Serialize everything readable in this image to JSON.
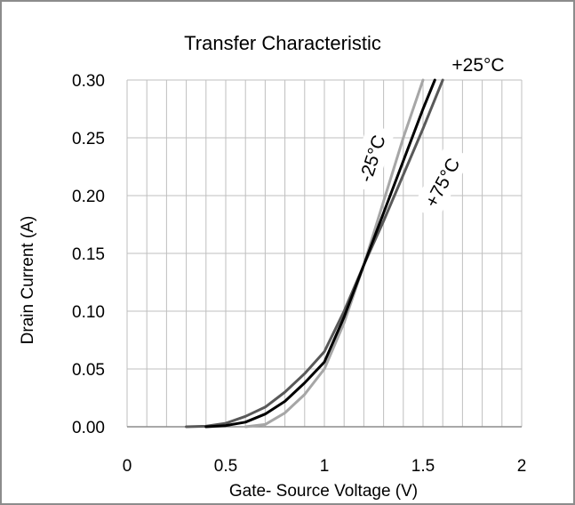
{
  "chart_data": {
    "type": "line",
    "title": "Transfer Characteristic",
    "xlabel": "Gate- Source Voltage (V)",
    "ylabel": "Drain Current (A)",
    "xlim": [
      0,
      2
    ],
    "ylim": [
      0,
      0.3
    ],
    "x_ticks": [
      0,
      0.5,
      1,
      1.5,
      2
    ],
    "x_tick_labels": [
      "0",
      "0.5",
      "1",
      "1.5",
      "2"
    ],
    "y_ticks": [
      0,
      0.05,
      0.1,
      0.15,
      0.2,
      0.25,
      0.3
    ],
    "y_tick_labels": [
      "0.00",
      "0.05",
      "0.10",
      "0.15",
      "0.20",
      "0.25",
      "0.30"
    ],
    "grid": true,
    "series": [
      {
        "name": "-25°C",
        "color": "#a6a6a6",
        "x": [
          0.6,
          0.7,
          0.8,
          0.9,
          1.0,
          1.1,
          1.2,
          1.3,
          1.4,
          1.5
        ],
        "y": [
          0.0,
          0.002,
          0.012,
          0.028,
          0.05,
          0.09,
          0.14,
          0.195,
          0.25,
          0.3
        ]
      },
      {
        "name": "+25°C",
        "color": "#000000",
        "x": [
          0.4,
          0.5,
          0.6,
          0.7,
          0.8,
          0.9,
          1.0,
          1.1,
          1.2,
          1.3,
          1.4,
          1.5,
          1.56
        ],
        "y": [
          0.0,
          0.001,
          0.004,
          0.011,
          0.022,
          0.038,
          0.056,
          0.095,
          0.14,
          0.185,
          0.23,
          0.275,
          0.3
        ]
      },
      {
        "name": "+75°C",
        "color": "#595959",
        "x": [
          0.3,
          0.4,
          0.5,
          0.6,
          0.7,
          0.8,
          0.9,
          1.0,
          1.1,
          1.2,
          1.3,
          1.4,
          1.5,
          1.6
        ],
        "y": [
          0.0,
          0.0005,
          0.003,
          0.009,
          0.017,
          0.03,
          0.046,
          0.065,
          0.1,
          0.14,
          0.178,
          0.218,
          0.258,
          0.3
        ]
      }
    ]
  }
}
